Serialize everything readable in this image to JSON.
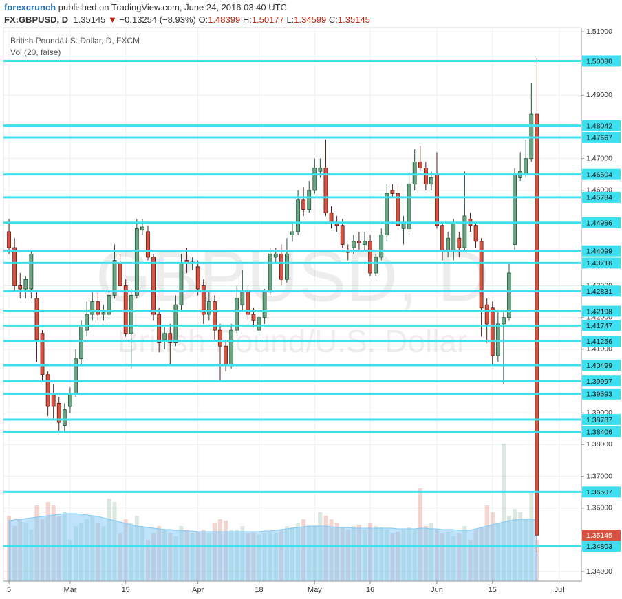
{
  "header": {
    "author": "forexcrunch",
    "published": "published on TradingView.com, June 24, 2016 03:40 UTC",
    "symbol": "FX:GBPUSD, D",
    "price": "1.35145",
    "arrow": "▼",
    "change": "−0.13254 (−8.93%)",
    "ohlc": [
      {
        "label": "O:",
        "value": "1.48399"
      },
      {
        "label": "H:",
        "value": "1.50177"
      },
      {
        "label": "L:",
        "value": "1.34599"
      },
      {
        "label": "C:",
        "value": "1.35145"
      }
    ]
  },
  "chart_data": {
    "type": "candlestick",
    "title": "British Pound/U.S. Dollar, D, FXCM",
    "subtitle": "Vol (20, false)",
    "watermark": "GBPUSD, D",
    "watermark_sub": "British Pound/U.S. Dollar",
    "ylim": [
      1.337,
      1.5113
    ],
    "yticks": [
      {
        "value": 1.51,
        "label": "1.51000"
      },
      {
        "value": 1.49,
        "label": "1.49000"
      },
      {
        "value": 1.47,
        "label": "1.47000"
      },
      {
        "value": 1.46,
        "label": "1.46000"
      },
      {
        "value": 1.43,
        "label": "1.43000"
      },
      {
        "value": 1.42,
        "label": "1.42000"
      },
      {
        "value": 1.41,
        "label": "1.41000"
      },
      {
        "value": 1.39,
        "label": "1.39000"
      },
      {
        "value": 1.38,
        "label": "1.38000"
      },
      {
        "value": 1.37,
        "label": "1.37000"
      },
      {
        "value": 1.36,
        "label": "1.36000"
      },
      {
        "value": 1.34,
        "label": "1.34000"
      }
    ],
    "xlim": [
      -1,
      103
    ],
    "xticks": [
      {
        "value": 0,
        "label": "5"
      },
      {
        "value": 11,
        "label": "Mar"
      },
      {
        "value": 21,
        "label": "15"
      },
      {
        "value": 34,
        "label": "Apr"
      },
      {
        "value": 45,
        "label": "18"
      },
      {
        "value": 55,
        "label": "May"
      },
      {
        "value": 65,
        "label": "16"
      },
      {
        "value": 77,
        "label": "Jun"
      },
      {
        "value": 87,
        "label": "15"
      },
      {
        "value": 99,
        "label": "Jul"
      }
    ],
    "grid": true,
    "up_color": "#6ba583",
    "down_color": "#d75442",
    "level_color": "#3ee0f0",
    "volume_ma_color": "#7ec8f5",
    "open": [
      1.447,
      1.442,
      1.43,
      1.429,
      1.429,
      1.426,
      1.415,
      1.402,
      1.396,
      1.393,
      1.386,
      1.392,
      1.396,
      1.407,
      1.416,
      1.421,
      1.425,
      1.421,
      1.421,
      1.427,
      1.437,
      1.43,
      1.415,
      1.427,
      1.4475,
      1.447,
      1.439,
      1.421,
      1.413,
      1.415,
      1.412,
      1.424,
      1.438,
      1.437,
      1.436,
      1.43,
      1.421,
      1.425,
      1.416,
      1.411,
      1.405,
      1.416,
      1.424,
      1.428,
      1.421,
      1.416,
      1.42,
      1.428,
      1.439,
      1.44,
      1.432,
      1.446,
      1.447,
      1.457,
      1.454,
      1.46,
      1.466,
      1.467,
      1.453,
      1.45,
      1.449,
      1.441,
      1.442,
      1.444,
      1.443,
      1.444,
      1.434,
      1.439,
      1.446,
      1.46,
      1.459,
      1.448,
      1.448,
      1.462,
      1.469,
      1.467,
      1.462,
      1.465,
      1.449,
      1.441,
      1.441,
      1.445,
      1.442,
      1.451,
      1.449,
      1.444,
      1.424,
      1.423,
      1.408,
      1.418,
      1.42,
      1.443,
      1.464,
      1.465,
      1.47,
      1.48399
    ],
    "high": [
      1.451,
      1.445,
      1.434,
      1.433,
      1.441,
      1.428,
      1.416,
      1.403,
      1.399,
      1.395,
      1.393,
      1.398,
      1.41,
      1.419,
      1.425,
      1.428,
      1.428,
      1.424,
      1.429,
      1.443,
      1.44,
      1.432,
      1.429,
      1.451,
      1.451,
      1.449,
      1.44,
      1.423,
      1.417,
      1.418,
      1.427,
      1.44,
      1.442,
      1.439,
      1.438,
      1.432,
      1.428,
      1.427,
      1.418,
      1.413,
      1.418,
      1.43,
      1.435,
      1.43,
      1.423,
      1.422,
      1.429,
      1.442,
      1.442,
      1.443,
      1.445,
      1.45,
      1.46,
      1.461,
      1.463,
      1.47,
      1.47,
      1.476,
      1.455,
      1.452,
      1.451,
      1.443,
      1.446,
      1.447,
      1.447,
      1.446,
      1.44,
      1.448,
      1.462,
      1.462,
      1.462,
      1.452,
      1.465,
      1.473,
      1.474,
      1.469,
      1.466,
      1.472,
      1.45,
      1.447,
      1.451,
      1.447,
      1.466,
      1.453,
      1.45,
      1.445,
      1.426,
      1.425,
      1.422,
      1.422,
      1.437,
      1.467,
      1.472,
      1.476,
      1.494,
      1.50177
    ],
    "low": [
      1.44,
      1.428,
      1.426,
      1.426,
      1.426,
      1.406,
      1.4,
      1.389,
      1.388,
      1.384,
      1.384,
      1.39,
      1.395,
      1.405,
      1.414,
      1.419,
      1.419,
      1.419,
      1.419,
      1.426,
      1.428,
      1.414,
      1.404,
      1.426,
      1.446,
      1.438,
      1.419,
      1.409,
      1.41,
      1.405,
      1.411,
      1.422,
      1.434,
      1.435,
      1.427,
      1.418,
      1.419,
      1.413,
      1.4,
      1.403,
      1.404,
      1.415,
      1.422,
      1.419,
      1.417,
      1.414,
      1.418,
      1.427,
      1.437,
      1.43,
      1.431,
      1.444,
      1.446,
      1.452,
      1.453,
      1.459,
      1.464,
      1.452,
      1.448,
      1.447,
      1.442,
      1.438,
      1.44,
      1.441,
      1.441,
      1.433,
      1.433,
      1.438,
      1.444,
      1.458,
      1.448,
      1.443,
      1.447,
      1.46,
      1.466,
      1.46,
      1.46,
      1.448,
      1.438,
      1.439,
      1.438,
      1.439,
      1.441,
      1.447,
      1.442,
      1.414,
      1.412,
      1.405,
      1.406,
      1.399,
      1.419,
      1.441,
      1.463,
      1.464,
      1.469,
      1.34599
    ],
    "close": [
      1.442,
      1.43,
      1.429,
      1.432,
      1.44,
      1.413,
      1.402,
      1.392,
      1.392,
      1.387,
      1.391,
      1.396,
      1.407,
      1.417,
      1.421,
      1.425,
      1.421,
      1.4215,
      1.427,
      1.438,
      1.43,
      1.415,
      1.427,
      1.448,
      1.4485,
      1.439,
      1.421,
      1.412,
      1.415,
      1.412,
      1.424,
      1.437,
      1.437,
      1.4375,
      1.429,
      1.421,
      1.425,
      1.416,
      1.411,
      1.405,
      1.416,
      1.426,
      1.428,
      1.421,
      1.419,
      1.42,
      1.428,
      1.44,
      1.44,
      1.432,
      1.44,
      1.447,
      1.457,
      1.454,
      1.46,
      1.467,
      1.467,
      1.453,
      1.45,
      1.449,
      1.443,
      1.4405,
      1.444,
      1.4435,
      1.444,
      1.434,
      1.439,
      1.446,
      1.459,
      1.459,
      1.449,
      1.45,
      1.462,
      1.469,
      1.467,
      1.462,
      1.464,
      1.449,
      1.441,
      1.445,
      1.45,
      1.442,
      1.452,
      1.449,
      1.444,
      1.423,
      1.418,
      1.408,
      1.418,
      1.42,
      1.434,
      1.465,
      1.466,
      1.47,
      1.484,
      1.35145
    ],
    "vlim": [
      0,
      300
    ],
    "volume": [
      95,
      80,
      90,
      85,
      75,
      110,
      90,
      115,
      110,
      95,
      100,
      60,
      80,
      85,
      90,
      95,
      85,
      80,
      120,
      115,
      70,
      90,
      85,
      95,
      80,
      60,
      70,
      80,
      75,
      70,
      65,
      80,
      75,
      70,
      72,
      75,
      70,
      85,
      90,
      88,
      75,
      75,
      80,
      70,
      72,
      68,
      70,
      72,
      70,
      75,
      80,
      78,
      85,
      90,
      80,
      80,
      100,
      95,
      90,
      85,
      78,
      75,
      80,
      82,
      75,
      85,
      80,
      78,
      75,
      70,
      72,
      75,
      78,
      75,
      135,
      80,
      85,
      75,
      70,
      72,
      65,
      70,
      80,
      60,
      75,
      78,
      110,
      100,
      85,
      200,
      95,
      105,
      100,
      90,
      130,
      60
    ],
    "volume_ma": [
      88,
      89,
      90,
      91,
      92,
      93,
      94,
      95,
      96,
      97,
      98,
      98,
      98,
      97,
      96,
      95,
      94,
      92,
      90,
      88,
      86,
      84,
      82,
      80,
      79,
      78,
      77,
      76,
      75,
      75,
      74,
      74,
      73,
      73,
      72,
      72,
      72,
      72,
      72,
      72,
      72,
      72,
      72,
      72,
      72,
      72,
      73,
      73,
      74,
      75,
      76,
      77,
      78,
      79,
      80,
      80,
      80,
      80,
      79,
      78,
      78,
      78,
      77,
      77,
      77,
      77,
      77,
      77,
      77,
      77,
      76,
      76,
      76,
      76,
      77,
      77,
      76,
      76,
      75,
      75,
      75,
      74,
      74,
      74,
      76,
      78,
      80,
      82,
      84,
      86,
      88,
      89,
      90,
      90,
      90,
      89
    ],
    "levels": [
      {
        "value": 1.5008,
        "label": "1.50080"
      },
      {
        "value": 1.48042,
        "label": "1.48042"
      },
      {
        "value": 1.47667,
        "label": "1.47667"
      },
      {
        "value": 1.46504,
        "label": "1.46504"
      },
      {
        "value": 1.45784,
        "label": "1.45784"
      },
      {
        "value": 1.44986,
        "label": "1.44986"
      },
      {
        "value": 1.44099,
        "label": "1.44099"
      },
      {
        "value": 1.43716,
        "label": "1.43716"
      },
      {
        "value": 1.42831,
        "label": "1.42831"
      },
      {
        "value": 1.42198,
        "label": "1.42198"
      },
      {
        "value": 1.41747,
        "label": "1.41747"
      },
      {
        "value": 1.41256,
        "label": "1.41256"
      },
      {
        "value": 1.40499,
        "label": "1.40499"
      },
      {
        "value": 1.39997,
        "label": "1.39997"
      },
      {
        "value": 1.39593,
        "label": "1.39593"
      },
      {
        "value": 1.38787,
        "label": "1.38787"
      },
      {
        "value": 1.38406,
        "label": "1.38406"
      },
      {
        "value": 1.36507,
        "label": "1.36507"
      },
      {
        "value": 1.34803,
        "label": "1.34803"
      }
    ],
    "last_price": {
      "value": 1.35145,
      "label": "1.35145"
    }
  }
}
